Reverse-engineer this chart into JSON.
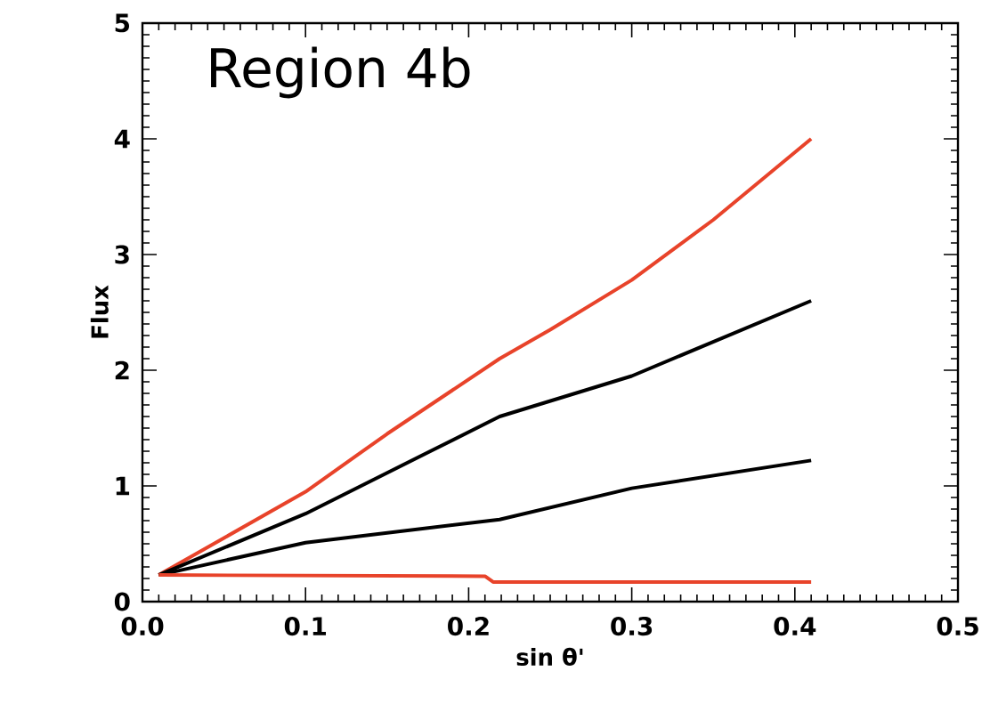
{
  "chart_data": {
    "type": "line",
    "xlabel": "sin θ'",
    "ylabel": "Flux",
    "annotations": [
      "Region 4b"
    ],
    "xlim": [
      0,
      0.5
    ],
    "ylim": [
      0,
      5
    ],
    "xticks": [
      {
        "value": 0,
        "label": "0.0"
      },
      0.1,
      0.2,
      0.3,
      0.4,
      0.5
    ],
    "yticks": [
      0,
      1,
      2,
      3,
      4,
      5
    ],
    "marker": "none",
    "line_style": "solid",
    "series": [
      {
        "color": "#e8432a",
        "x": [
          0.01,
          0.05,
          0.1,
          0.15,
          0.219,
          0.25,
          0.3,
          0.35,
          0.41
        ],
        "values": [
          0.23,
          0.55,
          0.95,
          1.45,
          2.1,
          2.35,
          2.78,
          3.3,
          4.0
        ]
      },
      {
        "color": "#000000",
        "x": [
          0.01,
          0.1,
          0.219,
          0.3,
          0.41
        ],
        "values": [
          0.23,
          0.76,
          1.6,
          1.95,
          2.6
        ]
      },
      {
        "color": "#000000",
        "x": [
          0.01,
          0.1,
          0.219,
          0.3,
          0.41
        ],
        "values": [
          0.23,
          0.51,
          0.71,
          0.98,
          1.22
        ]
      },
      {
        "color": "#e8432a",
        "x": [
          0.01,
          0.21,
          0.215,
          0.41
        ],
        "values": [
          0.23,
          0.22,
          0.17,
          0.17
        ]
      }
    ]
  }
}
